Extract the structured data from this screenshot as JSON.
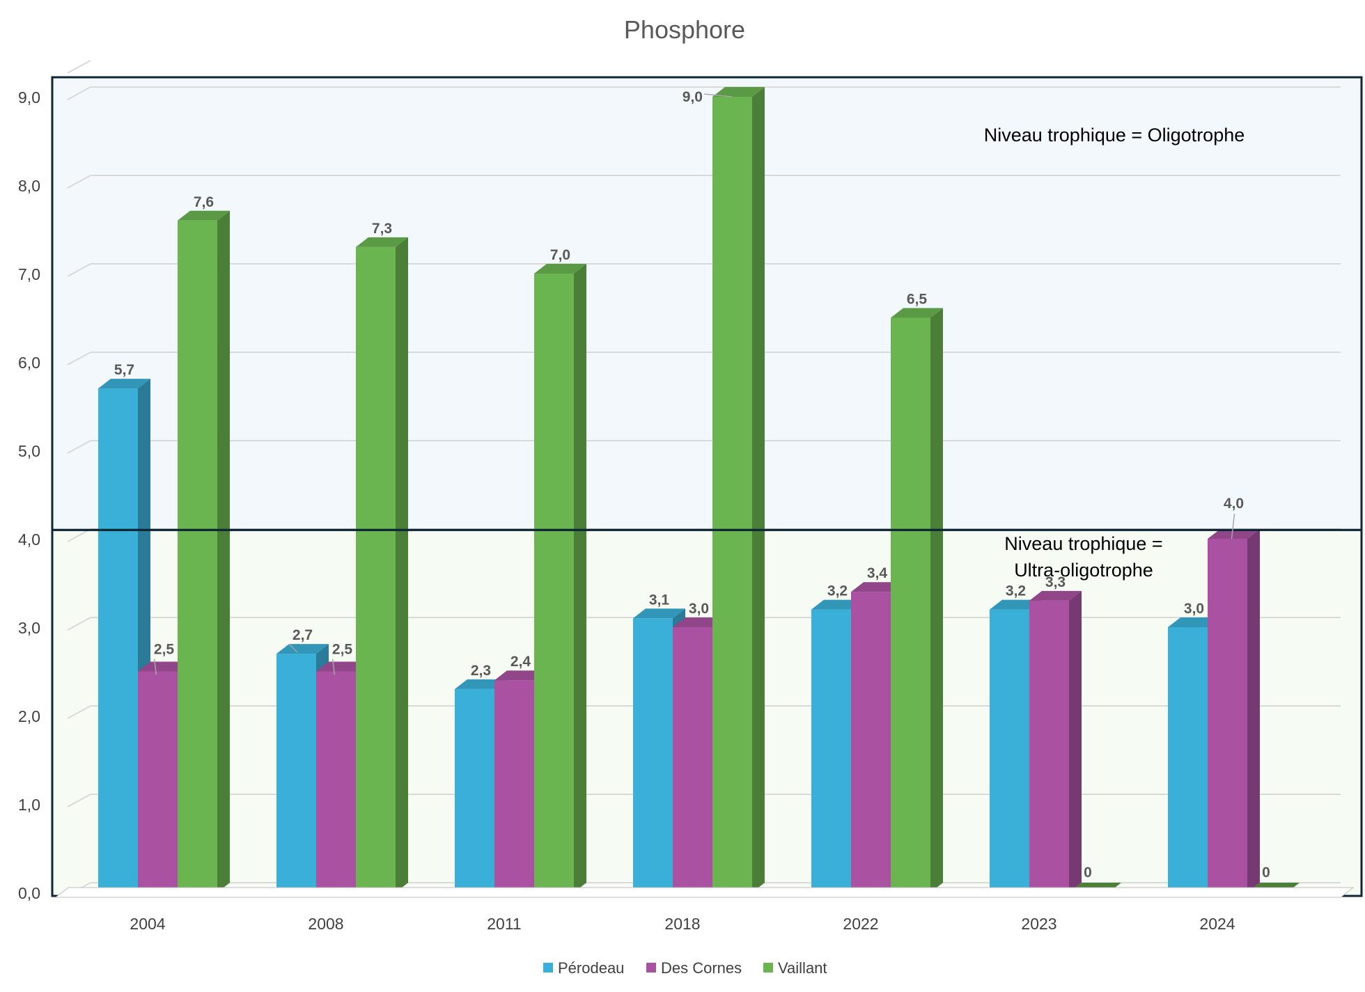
{
  "chart_data": {
    "type": "bar",
    "title": "Phosphore",
    "categories": [
      "2004",
      "2008",
      "2011",
      "2018",
      "2022",
      "2023",
      "2024"
    ],
    "ylim": [
      0,
      9
    ],
    "yticks": [
      "0,0",
      "1,0",
      "2,0",
      "3,0",
      "4,0",
      "5,0",
      "6,0",
      "7,0",
      "8,0",
      "9,0"
    ],
    "series": [
      {
        "name": "Pérodeau",
        "color": "#3AB0D8",
        "values": [
          5.7,
          2.7,
          2.3,
          3.1,
          3.2,
          3.2,
          3.0
        ],
        "labels": [
          "5,7",
          "2,7",
          "2,3",
          "3,1",
          "3,2",
          "3,2",
          "3,0"
        ]
      },
      {
        "name": "Des Cornes",
        "color": "#AA52A1",
        "values": [
          2.5,
          2.5,
          2.4,
          3.0,
          3.4,
          3.3,
          4.0
        ],
        "labels": [
          "2,5",
          "2,5",
          "2,4",
          "3,0",
          "3,4",
          "3,3",
          "4,0"
        ]
      },
      {
        "name": "Vaillant",
        "color": "#6BB550",
        "values": [
          7.6,
          7.3,
          7.0,
          9.0,
          6.5,
          0,
          0
        ],
        "labels": [
          "7,6",
          "7,3",
          "7,0",
          "9,0",
          "6,5",
          "0",
          "0"
        ]
      }
    ],
    "zones": [
      {
        "label_lines": [
          "Niveau trophique = Oligotrophe"
        ],
        "from": 4.1,
        "to": 9.3,
        "color": "#F3F8FC"
      },
      {
        "label_lines": [
          "Niveau trophique =",
          "Ultra-oligotrophe"
        ],
        "from": 0,
        "to": 4.1,
        "color": "#F6FBF4"
      }
    ],
    "legend_position": "bottom"
  }
}
